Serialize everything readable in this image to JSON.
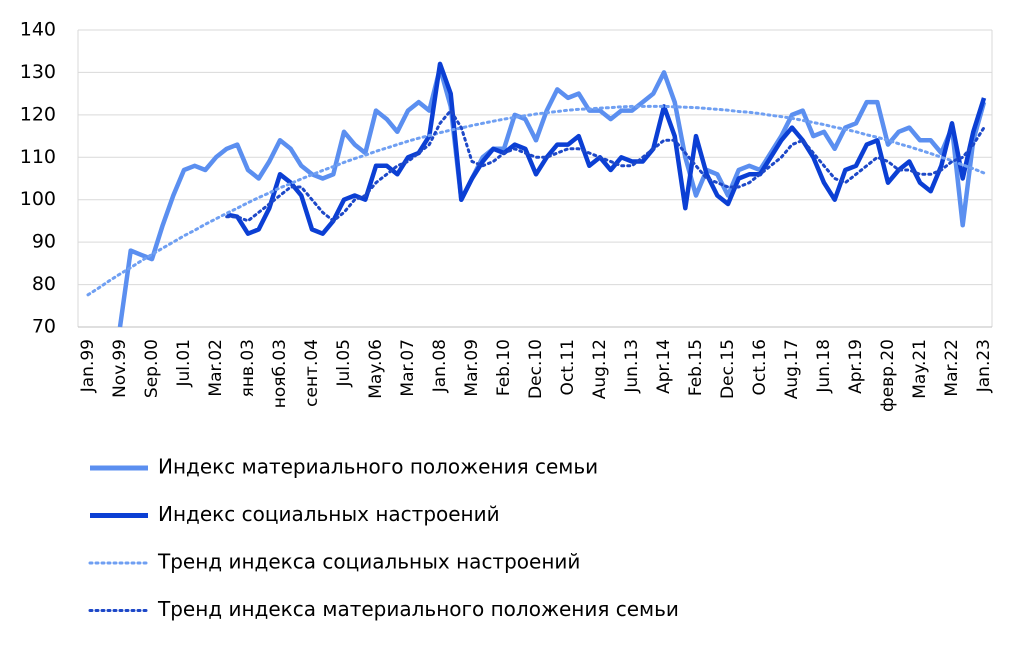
{
  "chart_data": {
    "type": "line",
    "categories": [
      "Jan.99",
      null,
      null,
      "Nov.99",
      null,
      null,
      "Sep.00",
      null,
      null,
      "Jul.01",
      null,
      null,
      "Mar.02",
      null,
      null,
      "янв.03",
      null,
      null,
      "нояб.03",
      null,
      null,
      "сент.04",
      null,
      null,
      "Jul.05",
      null,
      null,
      "May.06",
      null,
      null,
      "Mar.07",
      null,
      null,
      "Jan.08",
      null,
      null,
      "Mar.09",
      null,
      null,
      "Feb.10",
      null,
      null,
      "Dec.10",
      null,
      null,
      "Oct.11",
      null,
      null,
      "Aug.12",
      null,
      null,
      "Jun.13",
      null,
      null,
      "Apr.14",
      null,
      null,
      "Feb.15",
      null,
      null,
      "Dec.15",
      null,
      null,
      "Oct.16",
      null,
      null,
      "Aug.17",
      null,
      null,
      "Jun.18",
      null,
      null,
      "Apr.19",
      null,
      null,
      "февр.20",
      null,
      null,
      "May.21",
      null,
      null,
      "Mar.22",
      null,
      null,
      "Jan.23"
    ],
    "series": [
      {
        "name": "Индекс материального положения семьи",
        "color": "#5b8ff0",
        "style": "solid",
        "values": [
          null,
          null,
          null,
          70,
          88,
          87,
          86,
          94,
          101,
          107,
          108,
          107,
          110,
          112,
          113,
          107,
          105,
          109,
          114,
          112,
          108,
          106,
          105,
          106,
          116,
          113,
          111,
          121,
          119,
          116,
          121,
          123,
          121,
          131,
          122,
          100,
          105,
          110,
          112,
          112,
          120,
          119,
          114,
          121,
          126,
          124,
          125,
          121,
          121,
          119,
          121,
          121,
          123,
          125,
          130,
          123,
          110,
          101,
          107,
          106,
          101,
          107,
          108,
          107,
          111,
          115,
          120,
          121,
          115,
          116,
          112,
          117,
          118,
          123,
          123,
          113,
          116,
          117,
          114,
          114,
          111,
          117,
          94,
          114,
          123
        ]
      },
      {
        "name": "Индекс социальных настроений",
        "color": "#0b3fd4",
        "style": "solid",
        "values": [
          null,
          null,
          null,
          null,
          null,
          null,
          null,
          null,
          null,
          null,
          null,
          null,
          null,
          96.5,
          96,
          92,
          93,
          98,
          106,
          104,
          101,
          93,
          92,
          95,
          100,
          101,
          100,
          108,
          108,
          106,
          110,
          111,
          115,
          132,
          125,
          100,
          105,
          109,
          112,
          111,
          113,
          112,
          106,
          110,
          113,
          113,
          115,
          108,
          110,
          107,
          110,
          109,
          109,
          112,
          122,
          115,
          98,
          115,
          106,
          101,
          99,
          105,
          106,
          106,
          110,
          114,
          117,
          114,
          110,
          104,
          100,
          107,
          108,
          113,
          114,
          104,
          107,
          109,
          104,
          102,
          108,
          118,
          105,
          116,
          124
        ]
      },
      {
        "name": "Тренд индекса социальных настроений",
        "color": "#6f9ff2",
        "style": "dotted",
        "values": [
          77.6,
          79.2,
          80.9,
          82.5,
          84.0,
          85.6,
          87.1,
          88.6,
          90.0,
          91.5,
          92.8,
          94.2,
          95.5,
          96.8,
          98.0,
          99.3,
          100.5,
          101.6,
          102.8,
          103.8,
          104.9,
          105.9,
          106.9,
          107.8,
          108.8,
          109.7,
          110.5,
          111.4,
          112.2,
          113.0,
          113.8,
          114.5,
          115.1,
          115.8,
          116.4,
          116.9,
          117.5,
          118.0,
          118.5,
          119.0,
          119.4,
          119.8,
          120.2,
          120.5,
          120.8,
          121.1,
          121.3,
          121.4,
          121.6,
          121.7,
          121.9,
          122,
          122,
          122,
          122,
          121.9,
          121.8,
          121.7,
          121.5,
          121.3,
          121.1,
          120.8,
          120.6,
          120.3,
          119.9,
          119.6,
          119.2,
          118.7,
          118.2,
          117.7,
          117.1,
          116.6,
          116.0,
          115.3,
          114.7,
          114.0,
          113.2,
          112.5,
          111.7,
          110.9,
          110.0,
          109.2,
          108.2,
          107.3,
          106.3
        ]
      },
      {
        "name": "Тренд индекса материального положения семьи",
        "color": "#1d48c8",
        "style": "dotted",
        "values": [
          null,
          null,
          null,
          null,
          null,
          null,
          null,
          null,
          null,
          null,
          null,
          null,
          null,
          96,
          96,
          95,
          97,
          99,
          101,
          103,
          103,
          100,
          97,
          95,
          97,
          100,
          101,
          104,
          106,
          108,
          109,
          111,
          113,
          118,
          121,
          117,
          109,
          108,
          109,
          111,
          112,
          111,
          110,
          110,
          111,
          112,
          112,
          111,
          110,
          109,
          108,
          108,
          110,
          112,
          114,
          114,
          111,
          108,
          105,
          104,
          103,
          103,
          104,
          106,
          108,
          110,
          113,
          114,
          111,
          108,
          105,
          104,
          106,
          108,
          110,
          109,
          107,
          107,
          106,
          106,
          107,
          109,
          110,
          113,
          117
        ]
      }
    ],
    "ylim": [
      70,
      140
    ],
    "yticks": [
      70,
      80,
      90,
      100,
      110,
      120,
      130,
      140
    ],
    "grid": true
  }
}
